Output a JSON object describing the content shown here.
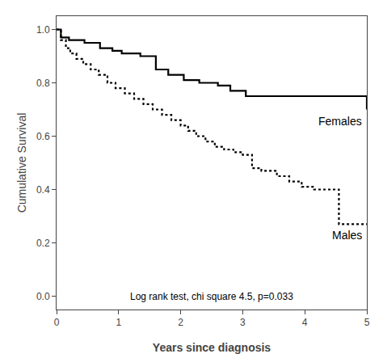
{
  "chart_data": {
    "type": "step",
    "xlabel": "Years since diagnosis",
    "ylabel": "Cumulative Survival",
    "annotation": "Log rank test, chi square 4.5, p=0.033",
    "xlim": [
      0,
      5
    ],
    "ylim": [
      -0.05,
      1.05
    ],
    "xticks": [
      0,
      1,
      2,
      3,
      4,
      5
    ],
    "yticks": [
      {
        "value": 0.0,
        "label": "0.0"
      },
      {
        "value": 0.2,
        "label": "0.2"
      },
      {
        "value": 0.4,
        "label": "0.4"
      },
      {
        "value": 0.6,
        "label": "0.6"
      },
      {
        "value": 0.8,
        "label": "0.8"
      },
      {
        "value": 1.0,
        "label": "1.0"
      }
    ],
    "grid": false,
    "series": [
      {
        "name": "Females",
        "color": "#000000",
        "line_style": "solid",
        "x": [
          0,
          0.07,
          0.2,
          0.45,
          0.7,
          0.9,
          1.05,
          1.35,
          1.6,
          1.8,
          2.05,
          2.3,
          2.6,
          2.8,
          3.05,
          5.0
        ],
        "values": [
          1.0,
          0.97,
          0.96,
          0.95,
          0.93,
          0.92,
          0.91,
          0.9,
          0.85,
          0.83,
          0.81,
          0.8,
          0.79,
          0.77,
          0.75,
          0.7
        ]
      },
      {
        "name": "Males",
        "color": "#000000",
        "line_style": "dotted",
        "x": [
          0,
          0.07,
          0.15,
          0.22,
          0.32,
          0.43,
          0.55,
          0.68,
          0.82,
          0.95,
          1.1,
          1.25,
          1.4,
          1.55,
          1.7,
          1.85,
          2.0,
          2.12,
          2.25,
          2.4,
          2.55,
          2.7,
          2.85,
          3.0,
          3.15,
          3.3,
          3.55,
          3.75,
          3.95,
          4.15,
          4.55,
          5.0
        ],
        "values": [
          1.0,
          0.96,
          0.93,
          0.91,
          0.89,
          0.87,
          0.85,
          0.83,
          0.8,
          0.78,
          0.76,
          0.74,
          0.72,
          0.7,
          0.68,
          0.66,
          0.64,
          0.62,
          0.6,
          0.58,
          0.56,
          0.55,
          0.54,
          0.53,
          0.48,
          0.47,
          0.45,
          0.43,
          0.41,
          0.4,
          0.27,
          0.27
        ]
      }
    ]
  }
}
